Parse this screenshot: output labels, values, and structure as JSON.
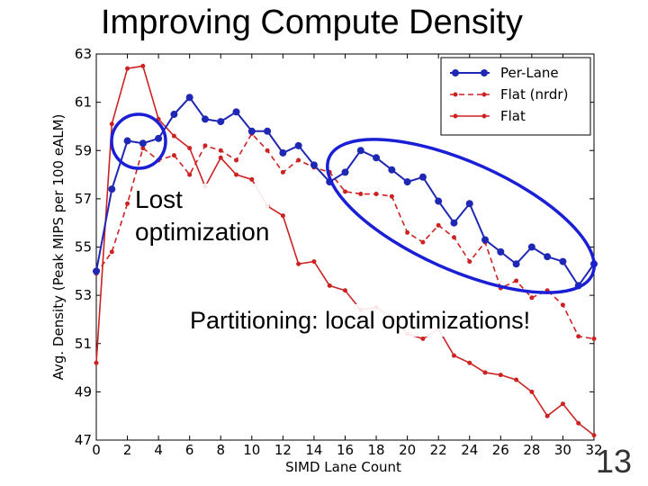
{
  "slide": {
    "title": "Improving Compute Density",
    "page_number": "13"
  },
  "annotations": {
    "lost_optimization": [
      "Lost",
      "optimization"
    ],
    "partitioning": "Partitioning: local optimizations!"
  },
  "chart_data": {
    "type": "line",
    "title": "",
    "xlabel": "SIMD Lane Count",
    "ylabel": "Avg. Density (Peak MIPS per 100 eALM)",
    "xlim": [
      0,
      32
    ],
    "ylim": [
      47,
      63
    ],
    "xticks": [
      0,
      2,
      4,
      6,
      8,
      10,
      12,
      14,
      16,
      18,
      20,
      22,
      24,
      26,
      28,
      30,
      32
    ],
    "yticks": [
      47,
      49,
      51,
      53,
      55,
      57,
      59,
      61,
      63
    ],
    "legend_position": "top-right",
    "x": [
      0,
      1,
      2,
      3,
      4,
      5,
      6,
      7,
      8,
      9,
      10,
      11,
      12,
      13,
      14,
      15,
      16,
      17,
      18,
      19,
      20,
      21,
      22,
      23,
      24,
      25,
      26,
      27,
      28,
      29,
      30,
      31,
      32
    ],
    "series": [
      {
        "name": "Per-Lane",
        "color": "#1f28b4",
        "style": "solid",
        "values": [
          54.0,
          57.4,
          59.4,
          59.3,
          59.5,
          60.5,
          61.2,
          60.3,
          60.2,
          60.6,
          59.8,
          59.8,
          58.9,
          59.2,
          58.4,
          57.7,
          58.1,
          59.0,
          58.7,
          58.2,
          57.7,
          57.9,
          56.9,
          56.0,
          56.8,
          55.3,
          54.8,
          54.3,
          55.0,
          54.6,
          54.4,
          53.4,
          54.3
        ]
      },
      {
        "name": "Flat (nrdr)",
        "color": "#cc2222",
        "style": "dashed",
        "values": [
          53.9,
          54.8,
          56.8,
          59.1,
          58.6,
          58.8,
          58.0,
          59.2,
          59.0,
          58.6,
          59.7,
          59.0,
          58.1,
          58.6,
          58.3,
          58.1,
          57.3,
          57.2,
          57.2,
          57.1,
          55.6,
          55.2,
          55.9,
          55.4,
          54.4,
          55.2,
          53.3,
          53.6,
          52.9,
          53.2,
          52.6,
          51.3,
          51.2
        ]
      },
      {
        "name": "Flat",
        "color": "#cc2222",
        "style": "solid",
        "values": [
          50.2,
          60.1,
          62.4,
          62.5,
          60.3,
          59.6,
          59.1,
          57.5,
          58.7,
          58.0,
          57.8,
          56.7,
          56.3,
          54.3,
          54.4,
          53.4,
          53.2,
          52.4,
          52.5,
          52.1,
          51.4,
          51.2,
          51.6,
          50.5,
          50.2,
          49.8,
          49.7,
          49.5,
          49.0,
          48.0,
          48.5,
          47.7,
          47.2
        ]
      }
    ]
  }
}
